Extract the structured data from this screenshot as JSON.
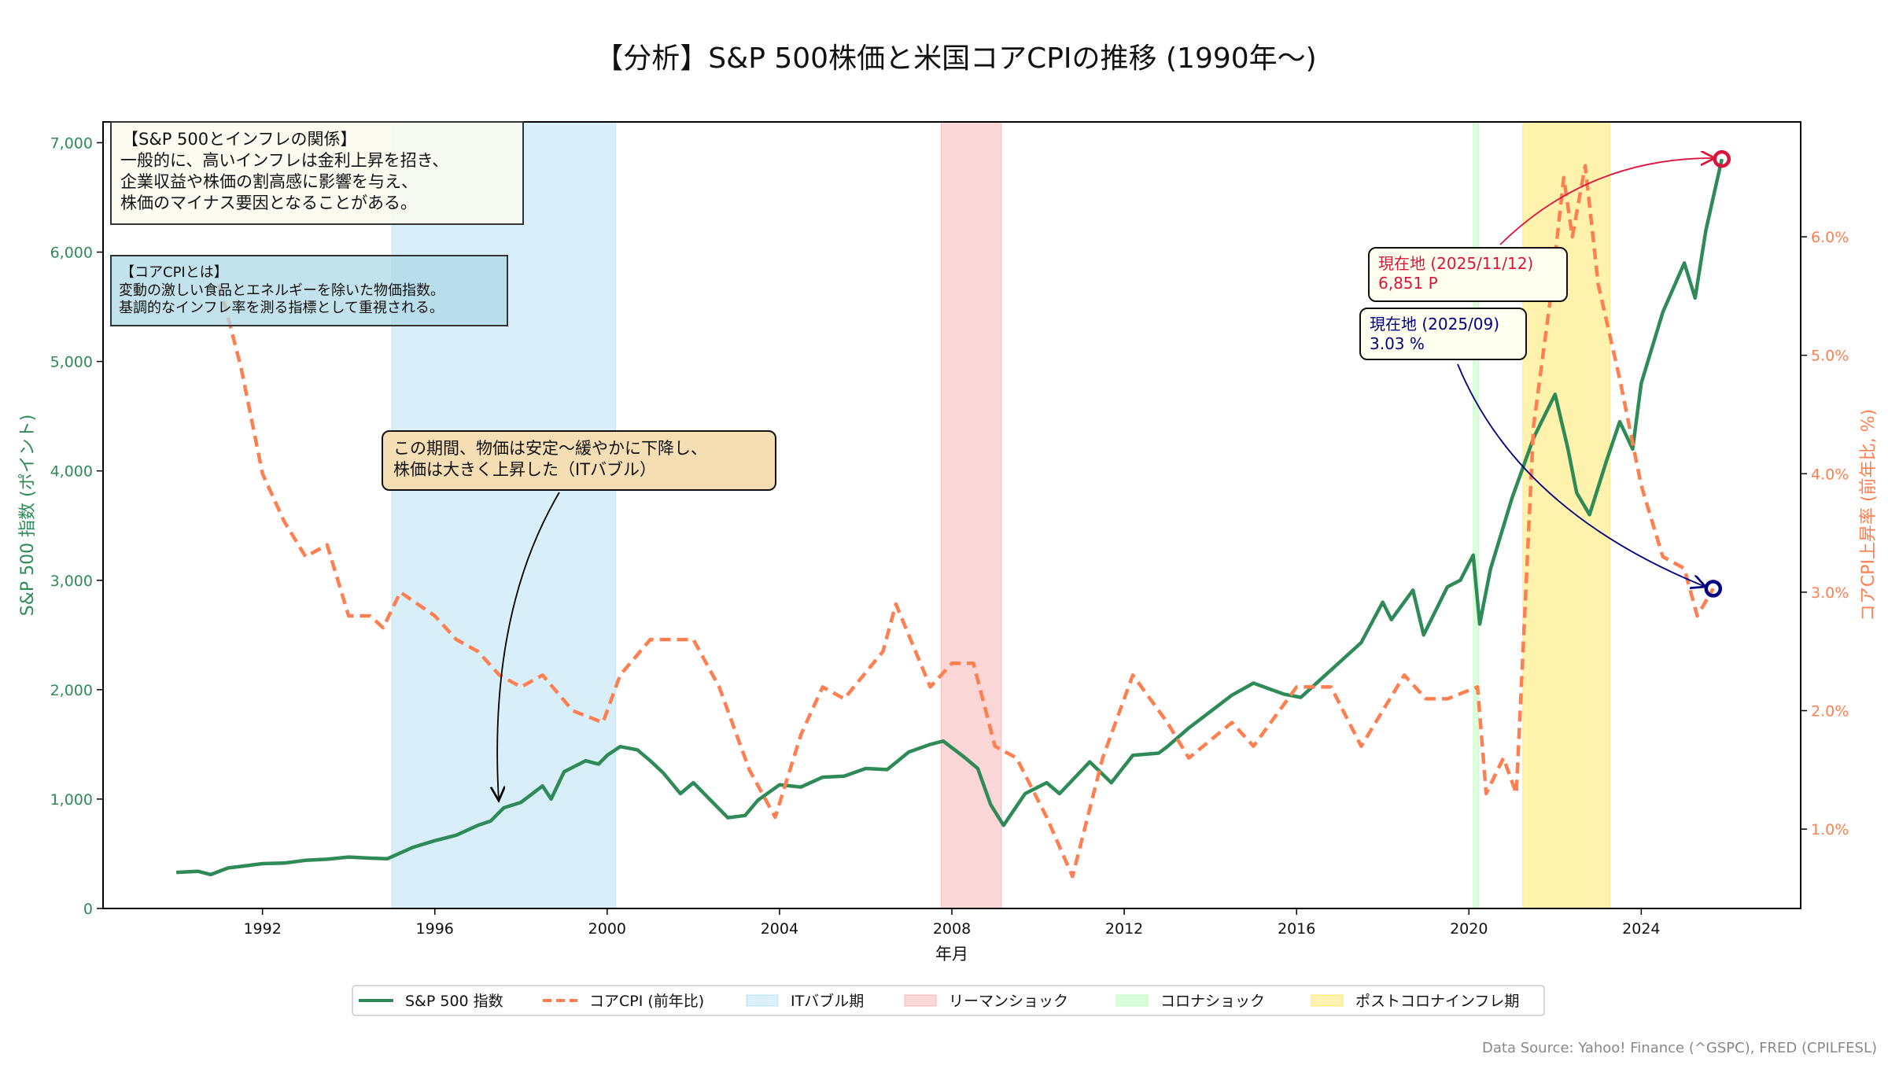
{
  "chart_data": {
    "type": "line",
    "title": "【分析】S&P 500株価と米国コアCPIの推移 (1990年〜)",
    "xlabel": "年月",
    "ylabel_left": "S&P 500 指数 (ポイント)",
    "ylabel_right": "コアCPI上昇率 (前年比, %)",
    "xlim": [
      1988.3,
      2027.7
    ],
    "ylim_left": [
      0,
      7190
    ],
    "ylim_right": [
      0.33,
      6.97
    ],
    "x_ticks": [
      "1992",
      "1996",
      "2000",
      "2004",
      "2008",
      "2012",
      "2016",
      "2020",
      "2024"
    ],
    "y_left_ticks": [
      "0",
      "1,000",
      "2,000",
      "3,000",
      "4,000",
      "5,000",
      "6,000",
      "7,000"
    ],
    "y_right_ticks": [
      "1.0%",
      "2.0%",
      "3.0%",
      "4.0%",
      "5.0%",
      "6.0%"
    ],
    "grid": false,
    "legend_position": "bottom-center",
    "colors": {
      "sp500": "#2e8b57",
      "cpi": "#ff7f50",
      "it": "#87ceeb",
      "lehman": "#f08080",
      "covid": "#98fb98",
      "post": "#ffd700"
    },
    "series": [
      {
        "name": "S&P 500 指数",
        "axis": "left",
        "style": "solid",
        "x": [
          1990.0,
          1990.5,
          1990.8,
          1991.2,
          1991.5,
          1992.0,
          1992.5,
          1993.0,
          1993.5,
          1994.0,
          1994.5,
          1994.9,
          1995.5,
          1996.0,
          1996.5,
          1997.0,
          1997.3,
          1997.6,
          1998.0,
          1998.5,
          1998.7,
          1999.0,
          1999.5,
          1999.8,
          2000.0,
          2000.3,
          2000.7,
          2001.0,
          2001.3,
          2001.7,
          2002.0,
          2002.5,
          2002.8,
          2003.2,
          2003.5,
          2004.0,
          2004.5,
          2005.0,
          2005.5,
          2006.0,
          2006.5,
          2007.0,
          2007.5,
          2007.8,
          2008.3,
          2008.6,
          2008.9,
          2009.2,
          2009.7,
          2010.2,
          2010.5,
          2011.2,
          2011.7,
          2012.2,
          2012.8,
          2013.0,
          2013.5,
          2014.0,
          2014.5,
          2015.0,
          2015.7,
          2016.1,
          2016.8,
          2017.5,
          2018.0,
          2018.2,
          2018.7,
          2018.95,
          2019.5,
          2019.8,
          2020.1,
          2020.25,
          2020.5,
          2021.0,
          2021.5,
          2022.0,
          2022.3,
          2022.5,
          2022.8,
          2023.2,
          2023.5,
          2023.8,
          2024.0,
          2024.5,
          2025.0,
          2025.25,
          2025.5,
          2025.87
        ],
        "values": [
          330,
          340,
          310,
          370,
          385,
          410,
          415,
          440,
          450,
          470,
          460,
          455,
          560,
          620,
          670,
          760,
          800,
          920,
          970,
          1120,
          1000,
          1250,
          1350,
          1320,
          1400,
          1480,
          1450,
          1350,
          1240,
          1050,
          1150,
          950,
          830,
          850,
          990,
          1130,
          1110,
          1200,
          1210,
          1280,
          1270,
          1430,
          1500,
          1530,
          1380,
          1280,
          950,
          760,
          1050,
          1150,
          1050,
          1340,
          1150,
          1400,
          1420,
          1480,
          1650,
          1800,
          1950,
          2060,
          1960,
          1930,
          2180,
          2430,
          2800,
          2640,
          2910,
          2500,
          2940,
          3000,
          3230,
          2600,
          3100,
          3750,
          4300,
          4700,
          4200,
          3800,
          3600,
          4100,
          4450,
          4200,
          4800,
          5450,
          5900,
          5580,
          6200,
          6851
        ]
      },
      {
        "name": "コアCPI (前年比)",
        "axis": "right",
        "style": "dashed",
        "x": [
          1991.0,
          1991.5,
          1992.0,
          1992.5,
          1993.0,
          1993.5,
          1994.0,
          1994.5,
          1994.8,
          1995.2,
          1996.0,
          1996.5,
          1997.0,
          1997.5,
          1998.0,
          1998.5,
          1999.2,
          1999.9,
          2000.3,
          2001.0,
          2002.0,
          2002.6,
          2003.3,
          2003.9,
          2004.5,
          2005.0,
          2005.5,
          2006.4,
          2006.7,
          2007.5,
          2008.0,
          2008.5,
          2009.0,
          2009.5,
          2010.2,
          2010.8,
          2011.5,
          2012.2,
          2013.0,
          2013.5,
          2014.5,
          2015.0,
          2016.0,
          2016.8,
          2017.5,
          2018.5,
          2019.0,
          2019.5,
          2020.2,
          2020.4,
          2020.8,
          2021.1,
          2021.5,
          2021.9,
          2022.2,
          2022.4,
          2022.7,
          2023.0,
          2023.5,
          2024.0,
          2024.5,
          2025.0,
          2025.3,
          2025.67
        ],
        "values": [
          5.6,
          4.9,
          4.0,
          3.6,
          3.3,
          3.4,
          2.8,
          2.8,
          2.7,
          3.0,
          2.8,
          2.6,
          2.5,
          2.3,
          2.2,
          2.3,
          2.0,
          1.9,
          2.3,
          2.6,
          2.6,
          2.2,
          1.5,
          1.1,
          1.8,
          2.2,
          2.1,
          2.5,
          2.9,
          2.2,
          2.4,
          2.4,
          1.7,
          1.6,
          1.1,
          0.6,
          1.6,
          2.3,
          1.9,
          1.6,
          1.9,
          1.7,
          2.2,
          2.2,
          1.7,
          2.3,
          2.1,
          2.1,
          2.2,
          1.3,
          1.6,
          1.3,
          4.4,
          5.5,
          6.5,
          6.0,
          6.6,
          5.6,
          4.8,
          3.9,
          3.3,
          3.2,
          2.8,
          3.03
        ]
      }
    ],
    "shaded_periods": [
      {
        "name": "ITバブル期",
        "start": 1995.0,
        "end": 2000.2
      },
      {
        "name": "リーマンショック",
        "start": 2007.75,
        "end": 2009.15
      },
      {
        "name": "コロナショック",
        "start": 2020.1,
        "end": 2020.23
      },
      {
        "name": "ポストコロナインフレ期",
        "start": 2021.25,
        "end": 2023.27
      }
    ],
    "annotations": {
      "relation": {
        "lines": [
          "【S&P 500とインフレの関係】",
          "一般的に、高いインフレは金利上昇を招き、",
          "企業収益や株価の割高感に影響を与え、",
          "株価のマイナス要因となることがある。"
        ]
      },
      "core_cpi": {
        "lines": [
          "【コアCPIとは】",
          "変動の激しい食品とエネルギーを除いた物価指数。",
          "基調的なインフレ率を測る指標として重視される。"
        ]
      },
      "it_period": {
        "lines": [
          "この期間、物価は安定〜緩やかに下降し、",
          "株価は大きく上昇した（ITバブル）"
        ],
        "target_x": 1997.5,
        "target_y": 950
      },
      "sp_current": {
        "lines": [
          "現在地 (2025/11/12)",
          "6,851 P"
        ],
        "x": 2025.87,
        "y": 6851
      },
      "cpi_current": {
        "lines": [
          "現在地 (2025/09)",
          "3.03 %"
        ],
        "x": 2025.67,
        "y": 3.03
      }
    },
    "legend": [
      "S&P 500 指数",
      "コアCPI (前年比)",
      "ITバブル期",
      "リーマンショック",
      "コロナショック",
      "ポストコロナインフレ期"
    ],
    "source": "Data Source: Yahoo! Finance (^GSPC), FRED (CPILFESL)"
  }
}
